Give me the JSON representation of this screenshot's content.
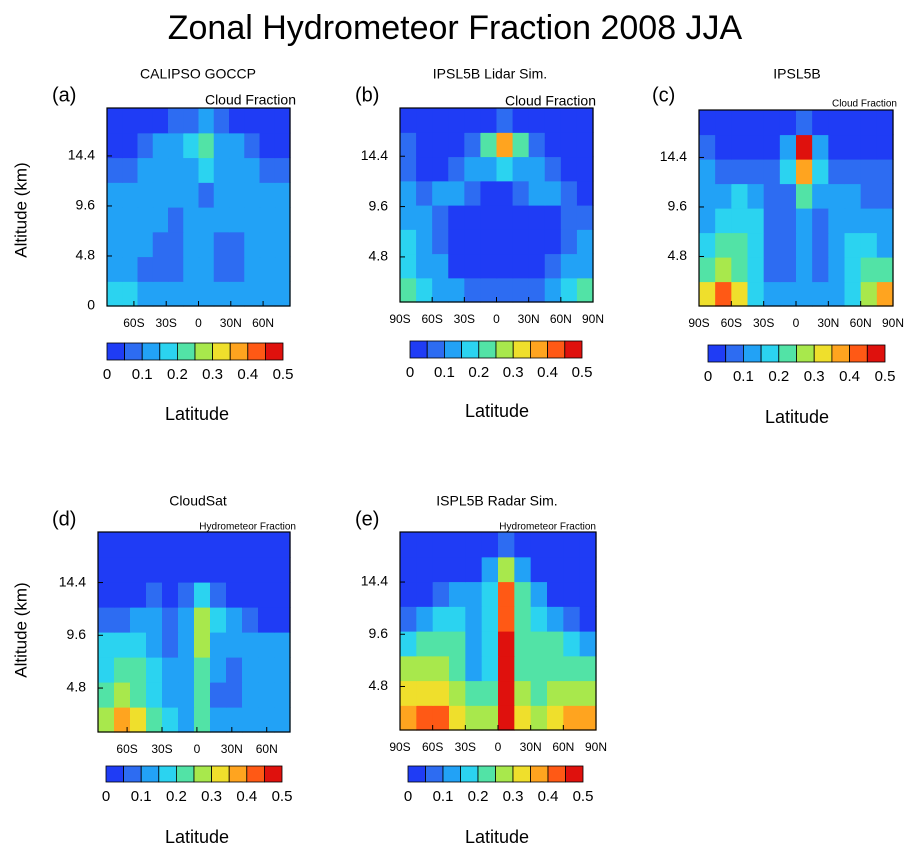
{
  "title": "Zonal Hydrometeor Fraction 2008 JJA",
  "chart_data": [
    {
      "type": "heatmap",
      "panel_label": "(a)",
      "title": "CALIPSO GOCCP",
      "subtitle": "Cloud Fraction",
      "x_label": "Latitude",
      "y_label": "Altitude (km)",
      "xlim": [
        -85,
        85
      ],
      "ylim": [
        0,
        19
      ],
      "xticks": [
        {
          "value": -60,
          "label": "60S"
        },
        {
          "value": -30,
          "label": "30S"
        },
        0,
        {
          "value": 30,
          "label": "30N"
        },
        {
          "value": 60,
          "label": "60N"
        }
      ],
      "yticks": [
        0,
        4.8,
        9.6,
        14.4
      ],
      "z": [
        [
          0.15,
          0.15,
          0.12,
          0.1,
          0.1,
          0.12,
          0.12,
          0.1,
          0.1,
          0.12,
          0.12,
          0.1
        ],
        [
          0.12,
          0.12,
          0.06,
          0.06,
          0.08,
          0.1,
          0.1,
          0.08,
          0.06,
          0.1,
          0.12,
          0.1
        ],
        [
          0.14,
          0.14,
          0.12,
          0.06,
          0.06,
          0.1,
          0.12,
          0.06,
          0.06,
          0.12,
          0.14,
          0.12
        ],
        [
          0.14,
          0.14,
          0.14,
          0.12,
          0.08,
          0.1,
          0.12,
          0.1,
          0.1,
          0.14,
          0.14,
          0.12
        ],
        [
          0.12,
          0.12,
          0.12,
          0.14,
          0.12,
          0.1,
          0.08,
          0.1,
          0.14,
          0.14,
          0.12,
          0.1
        ],
        [
          0.06,
          0.06,
          0.1,
          0.12,
          0.12,
          0.14,
          0.16,
          0.14,
          0.14,
          0.12,
          0.08,
          0.06
        ],
        [
          0.04,
          0.04,
          0.06,
          0.1,
          0.12,
          0.16,
          0.2,
          0.14,
          0.12,
          0.06,
          0.04,
          0.04
        ],
        [
          0.03,
          0.03,
          0.03,
          0.04,
          0.05,
          0.08,
          0.1,
          0.06,
          0.04,
          0.03,
          0.03,
          0.03
        ]
      ],
      "colorbar": {
        "lim": [
          0,
          0.5
        ],
        "ticks": [
          0,
          0.1,
          0.2,
          0.3,
          0.4,
          0.5
        ],
        "colors": [
          "#1f3cf5",
          "#2d6cf2",
          "#22a2f6",
          "#2bd3f0",
          "#52e3a6",
          "#a8e84c",
          "#efdf2c",
          "#ffa41f",
          "#ff5915",
          "#df110d"
        ]
      }
    },
    {
      "type": "heatmap",
      "panel_label": "(b)",
      "title": "IPSL5B Lidar Sim.",
      "subtitle": "Cloud Fraction",
      "x_label": "Latitude",
      "xlim": [
        -90,
        90
      ],
      "ylim": [
        0.5,
        19
      ],
      "xticks": [
        {
          "value": -90,
          "label": "90S"
        },
        {
          "value": -60,
          "label": "60S"
        },
        {
          "value": -30,
          "label": "30S"
        },
        0,
        {
          "value": 30,
          "label": "30N"
        },
        {
          "value": 60,
          "label": "60N"
        },
        {
          "value": 90,
          "label": "90N"
        }
      ],
      "yticks": [
        4.8,
        9.6,
        14.4
      ],
      "z": [
        [
          0.2,
          0.15,
          0.12,
          0.1,
          0.08,
          0.06,
          0.08,
          0.06,
          0.08,
          0.1,
          0.15,
          0.2
        ],
        [
          0.15,
          0.12,
          0.1,
          0.04,
          0.02,
          0.02,
          0.02,
          0.02,
          0.03,
          0.06,
          0.1,
          0.12
        ],
        [
          0.15,
          0.12,
          0.08,
          0.02,
          0.02,
          0.02,
          0.02,
          0.02,
          0.02,
          0.04,
          0.08,
          0.1
        ],
        [
          0.12,
          0.1,
          0.08,
          0.02,
          0.02,
          0.02,
          0.02,
          0.02,
          0.02,
          0.04,
          0.06,
          0.06
        ],
        [
          0.1,
          0.08,
          0.12,
          0.12,
          0.08,
          0.04,
          0.04,
          0.06,
          0.1,
          0.12,
          0.06,
          0.04
        ],
        [
          0.08,
          0.04,
          0.04,
          0.08,
          0.12,
          0.14,
          0.16,
          0.14,
          0.1,
          0.06,
          0.03,
          0.03
        ],
        [
          0.06,
          0.03,
          0.03,
          0.03,
          0.06,
          0.2,
          0.35,
          0.2,
          0.06,
          0.03,
          0.03,
          0.03
        ],
        [
          0.04,
          0.03,
          0.03,
          0.03,
          0.03,
          0.04,
          0.06,
          0.04,
          0.03,
          0.03,
          0.03,
          0.03
        ]
      ],
      "colorbar": {
        "lim": [
          0,
          0.5
        ],
        "ticks": [
          0,
          0.1,
          0.2,
          0.3,
          0.4,
          0.5
        ],
        "colors": [
          "#1f3cf5",
          "#2d6cf2",
          "#22a2f6",
          "#2bd3f0",
          "#52e3a6",
          "#a8e84c",
          "#efdf2c",
          "#ffa41f",
          "#ff5915",
          "#df110d"
        ]
      }
    },
    {
      "type": "heatmap",
      "panel_label": "(c)",
      "title": "IPSL5B",
      "subtitle": "Cloud Fraction",
      "x_label": "Latitude",
      "xlim": [
        -90,
        90
      ],
      "ylim": [
        0,
        19
      ],
      "xticks": [
        {
          "value": -90,
          "label": "90S"
        },
        {
          "value": -60,
          "label": "60S"
        },
        {
          "value": -30,
          "label": "30S"
        },
        0,
        {
          "value": 30,
          "label": "30N"
        },
        {
          "value": 60,
          "label": "60N"
        },
        {
          "value": 90,
          "label": "90N"
        }
      ],
      "yticks": [
        4.8,
        9.6,
        14.4
      ],
      "z": [
        [
          0.3,
          0.42,
          0.3,
          0.15,
          0.1,
          0.1,
          0.12,
          0.1,
          0.12,
          0.15,
          0.25,
          0.35
        ],
        [
          0.2,
          0.25,
          0.22,
          0.15,
          0.08,
          0.06,
          0.1,
          0.06,
          0.1,
          0.15,
          0.2,
          0.2
        ],
        [
          0.15,
          0.2,
          0.2,
          0.15,
          0.06,
          0.06,
          0.12,
          0.06,
          0.12,
          0.15,
          0.15,
          0.12
        ],
        [
          0.12,
          0.15,
          0.15,
          0.15,
          0.06,
          0.06,
          0.14,
          0.08,
          0.12,
          0.12,
          0.12,
          0.1
        ],
        [
          0.1,
          0.12,
          0.15,
          0.12,
          0.06,
          0.08,
          0.2,
          0.1,
          0.12,
          0.1,
          0.08,
          0.08
        ],
        [
          0.1,
          0.08,
          0.08,
          0.08,
          0.08,
          0.15,
          0.35,
          0.15,
          0.08,
          0.06,
          0.06,
          0.06
        ],
        [
          0.08,
          0.04,
          0.04,
          0.04,
          0.04,
          0.1,
          0.45,
          0.1,
          0.04,
          0.04,
          0.04,
          0.04
        ],
        [
          0.03,
          0.03,
          0.03,
          0.03,
          0.03,
          0.03,
          0.06,
          0.03,
          0.03,
          0.03,
          0.03,
          0.03
        ]
      ],
      "colorbar": {
        "lim": [
          0,
          0.5
        ],
        "ticks": [
          0,
          0.1,
          0.2,
          0.3,
          0.4,
          0.5
        ],
        "colors": [
          "#1f3cf5",
          "#2d6cf2",
          "#22a2f6",
          "#2bd3f0",
          "#52e3a6",
          "#a8e84c",
          "#efdf2c",
          "#ffa41f",
          "#ff5915",
          "#df110d"
        ]
      }
    },
    {
      "type": "heatmap",
      "panel_label": "(d)",
      "title": "CloudSat",
      "subtitle": "Hydrometeor Fraction",
      "x_label": "Latitude",
      "y_label": "Altitude (km)",
      "xlim": [
        -85,
        80
      ],
      "ylim": [
        0.8,
        19
      ],
      "xticks": [
        {
          "value": -60,
          "label": "60S"
        },
        {
          "value": -30,
          "label": "30S"
        },
        0,
        {
          "value": 30,
          "label": "30N"
        },
        {
          "value": 60,
          "label": "60N"
        }
      ],
      "yticks": [
        4.8,
        9.6,
        14.4
      ],
      "z": [
        [
          0.25,
          0.38,
          0.3,
          0.2,
          0.15,
          0.12,
          0.2,
          0.12,
          0.1,
          0.1,
          0.1,
          0.1
        ],
        [
          0.2,
          0.25,
          0.22,
          0.18,
          0.12,
          0.12,
          0.22,
          0.08,
          0.06,
          0.1,
          0.12,
          0.1
        ],
        [
          0.18,
          0.2,
          0.2,
          0.15,
          0.1,
          0.12,
          0.22,
          0.1,
          0.06,
          0.1,
          0.12,
          0.12
        ],
        [
          0.15,
          0.15,
          0.15,
          0.12,
          0.08,
          0.1,
          0.25,
          0.12,
          0.1,
          0.12,
          0.12,
          0.1
        ],
        [
          0.06,
          0.08,
          0.1,
          0.1,
          0.06,
          0.1,
          0.25,
          0.15,
          0.1,
          0.06,
          0.04,
          0.04
        ],
        [
          0.03,
          0.03,
          0.04,
          0.05,
          0.04,
          0.08,
          0.15,
          0.08,
          0.04,
          0.03,
          0.03,
          0.03
        ],
        [
          0.02,
          0.02,
          0.02,
          0.02,
          0.02,
          0.02,
          0.04,
          0.02,
          0.02,
          0.02,
          0.02,
          0.02
        ],
        [
          0.02,
          0.02,
          0.02,
          0.02,
          0.02,
          0.02,
          0.02,
          0.02,
          0.02,
          0.02,
          0.02,
          0.02
        ]
      ],
      "colorbar": {
        "lim": [
          0,
          0.5
        ],
        "ticks": [
          0,
          0.1,
          0.2,
          0.3,
          0.4,
          0.5
        ],
        "colors": [
          "#1f3cf5",
          "#2d6cf2",
          "#22a2f6",
          "#2bd3f0",
          "#52e3a6",
          "#a8e84c",
          "#efdf2c",
          "#ffa41f",
          "#ff5915",
          "#df110d"
        ]
      }
    },
    {
      "type": "heatmap",
      "panel_label": "(e)",
      "title": "ISPL5B Radar Sim.",
      "subtitle": "Hydrometeor Fraction",
      "x_label": "Latitude",
      "xlim": [
        -90,
        90
      ],
      "ylim": [
        0.8,
        19
      ],
      "xticks": [
        {
          "value": -90,
          "label": "90S"
        },
        {
          "value": -60,
          "label": "60S"
        },
        {
          "value": -30,
          "label": "30S"
        },
        0,
        {
          "value": 30,
          "label": "30N"
        },
        {
          "value": 60,
          "label": "60N"
        },
        {
          "value": 90,
          "label": "90N"
        }
      ],
      "yticks": [
        4.8,
        9.6,
        14.4
      ],
      "z": [
        [
          0.35,
          0.42,
          0.4,
          0.3,
          0.25,
          0.25,
          0.45,
          0.3,
          0.25,
          0.3,
          0.35,
          0.35
        ],
        [
          0.3,
          0.32,
          0.3,
          0.25,
          0.2,
          0.2,
          0.45,
          0.25,
          0.22,
          0.25,
          0.28,
          0.25
        ],
        [
          0.25,
          0.25,
          0.25,
          0.22,
          0.12,
          0.18,
          0.45,
          0.22,
          0.2,
          0.22,
          0.22,
          0.2
        ],
        [
          0.15,
          0.2,
          0.22,
          0.2,
          0.1,
          0.18,
          0.45,
          0.2,
          0.2,
          0.2,
          0.15,
          0.12
        ],
        [
          0.06,
          0.1,
          0.15,
          0.18,
          0.12,
          0.18,
          0.42,
          0.2,
          0.15,
          0.1,
          0.06,
          0.04
        ],
        [
          0.03,
          0.03,
          0.06,
          0.1,
          0.12,
          0.18,
          0.4,
          0.2,
          0.1,
          0.04,
          0.03,
          0.03
        ],
        [
          0.02,
          0.02,
          0.02,
          0.03,
          0.04,
          0.12,
          0.25,
          0.1,
          0.03,
          0.02,
          0.02,
          0.02
        ],
        [
          0.02,
          0.02,
          0.02,
          0.02,
          0.02,
          0.02,
          0.06,
          0.02,
          0.02,
          0.02,
          0.02,
          0.02
        ]
      ],
      "colorbar": {
        "lim": [
          0,
          0.5
        ],
        "ticks": [
          0,
          0.1,
          0.2,
          0.3,
          0.4,
          0.5
        ],
        "colors": [
          "#1f3cf5",
          "#2d6cf2",
          "#22a2f6",
          "#2bd3f0",
          "#52e3a6",
          "#a8e84c",
          "#efdf2c",
          "#ffa41f",
          "#ff5915",
          "#df110d"
        ]
      }
    }
  ]
}
